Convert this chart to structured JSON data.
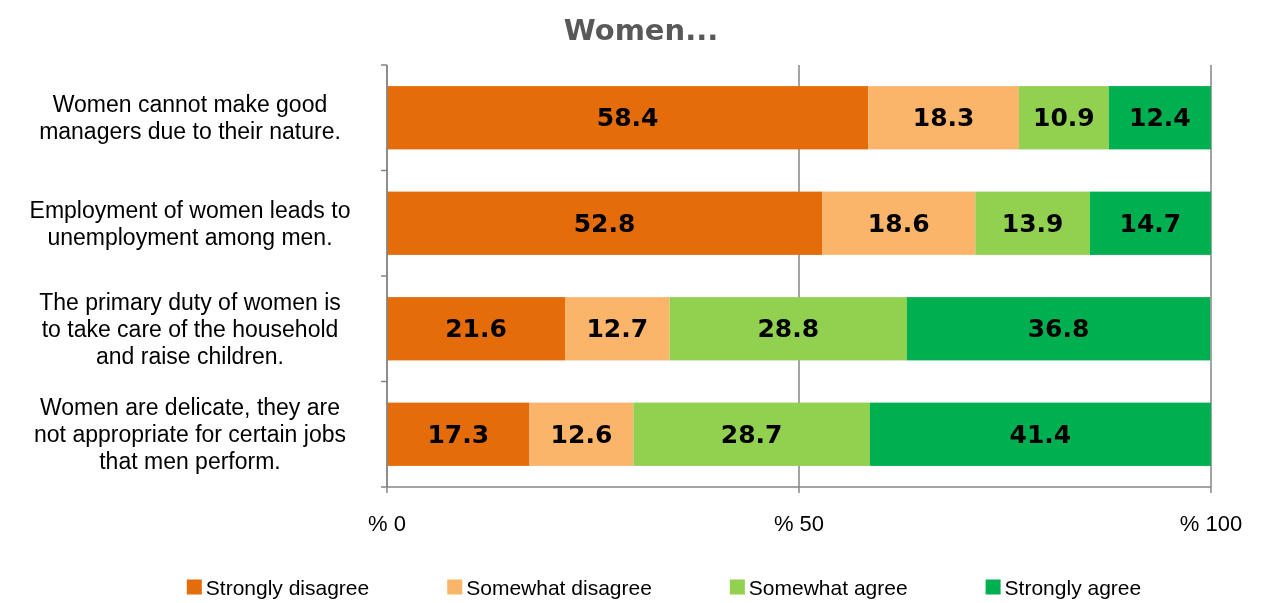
{
  "chart_data": {
    "type": "bar",
    "orientation": "horizontal",
    "stacked": true,
    "title": "Women...",
    "categories": [
      "Women cannot make good managers due to their nature.",
      "Employment of women leads to unemployment among men.",
      "The primary duty of women is to take care of the household and raise children.",
      "Women are delicate, they are not appropriate for certain jobs that men perform."
    ],
    "series": [
      {
        "name": "Strongly disagree",
        "color": "#e46c0a",
        "values": [
          58.4,
          52.8,
          21.6,
          17.3
        ]
      },
      {
        "name": "Somewhat disagree",
        "color": "#fab56b",
        "values": [
          18.3,
          18.6,
          12.7,
          12.6
        ]
      },
      {
        "name": "Somewhat agree",
        "color": "#92d050",
        "values": [
          10.9,
          13.9,
          28.8,
          28.7
        ]
      },
      {
        "name": "Strongly agree",
        "color": "#00b050",
        "values": [
          12.4,
          14.7,
          36.8,
          41.4
        ]
      }
    ],
    "xlim": [
      0,
      100
    ],
    "xticks": [
      {
        "value": 0,
        "label": "% 0"
      },
      {
        "value": 50,
        "label": "% 50"
      },
      {
        "value": 100,
        "label": "% 100"
      }
    ],
    "grid": "x",
    "legend": "bottom",
    "data_labels": true
  }
}
